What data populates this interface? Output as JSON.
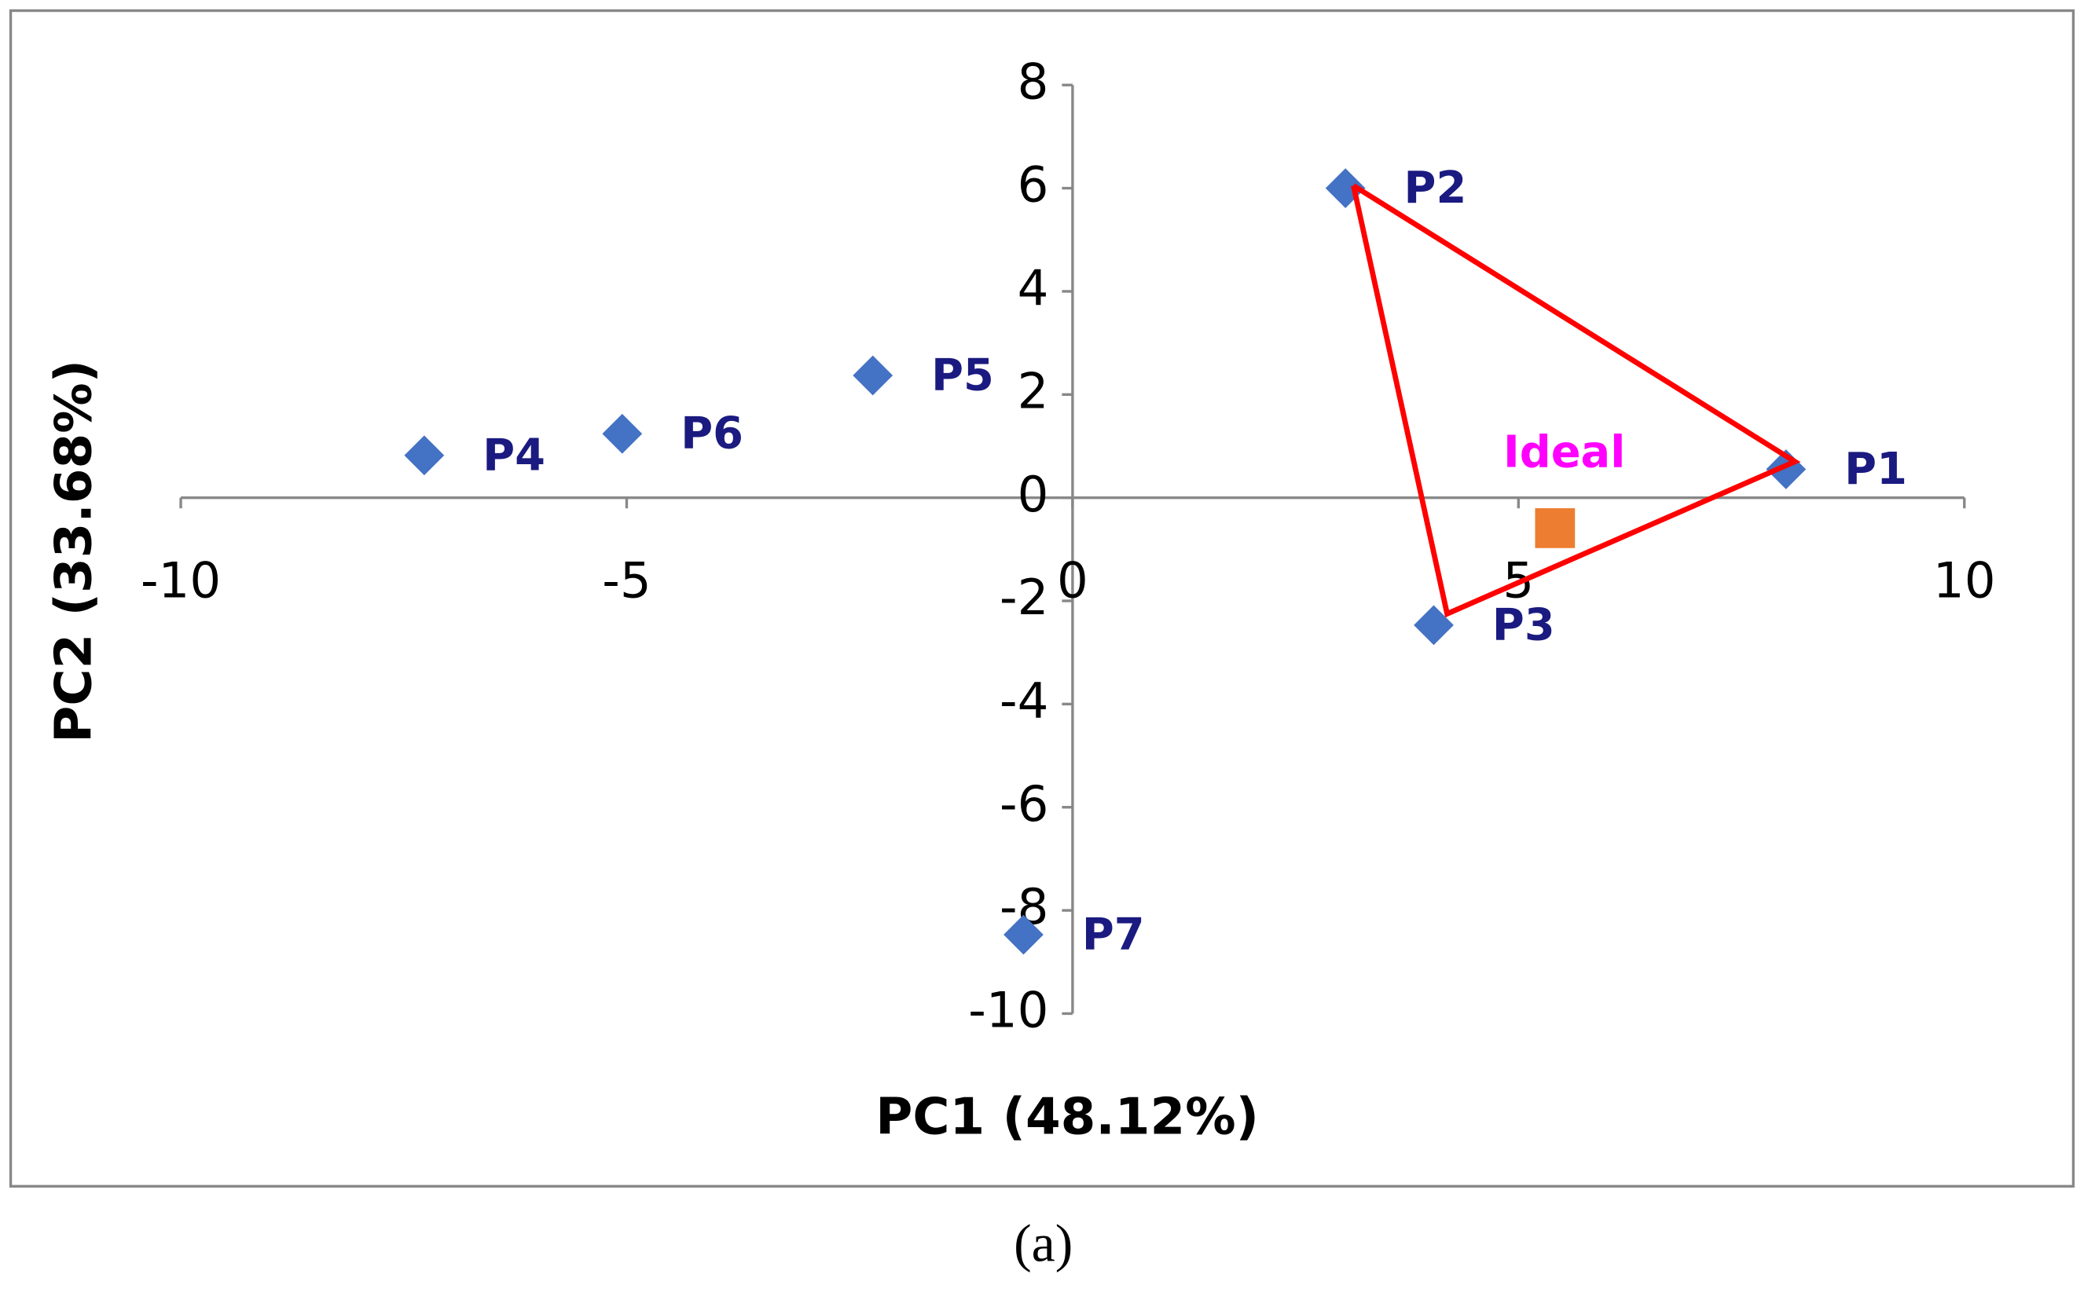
{
  "chart_data": {
    "type": "scatter",
    "xlabel": "PC1 (48.12%)",
    "ylabel": "PC2 (33.68%)",
    "caption": "(a)",
    "xlim": [
      -10,
      10
    ],
    "ylim": [
      -10,
      8
    ],
    "xticks": [
      -10,
      -5,
      0,
      5,
      10
    ],
    "yticks": [
      -10,
      -8,
      -6,
      -4,
      -2,
      0,
      2,
      4,
      6,
      8
    ],
    "series": [
      {
        "type": "scatter",
        "marker": "diamond",
        "color": "#4472c4",
        "label_color": "#1a1a80",
        "labels": [
          "P1",
          "P2",
          "P3",
          "P4",
          "P5",
          "P6",
          "P7"
        ],
        "x": [
          8.0,
          3.06,
          4.05,
          -7.27,
          -2.24,
          -5.05,
          -0.55
        ],
        "values": [
          0.55,
          6.0,
          -2.47,
          0.82,
          2.37,
          1.24,
          -8.47
        ]
      },
      {
        "type": "scatter",
        "marker": "square",
        "color": "#ed7d31",
        "label_color": "#ff00ff",
        "labels": [
          "Ideal"
        ],
        "x": [
          5.41
        ],
        "values": [
          -0.59
        ]
      },
      {
        "type": "line",
        "color": "#ff0000",
        "x": [
          3.15,
          8.1,
          4.2,
          3.15
        ],
        "values": [
          6.05,
          0.7,
          -2.25,
          6.05
        ]
      }
    ]
  }
}
